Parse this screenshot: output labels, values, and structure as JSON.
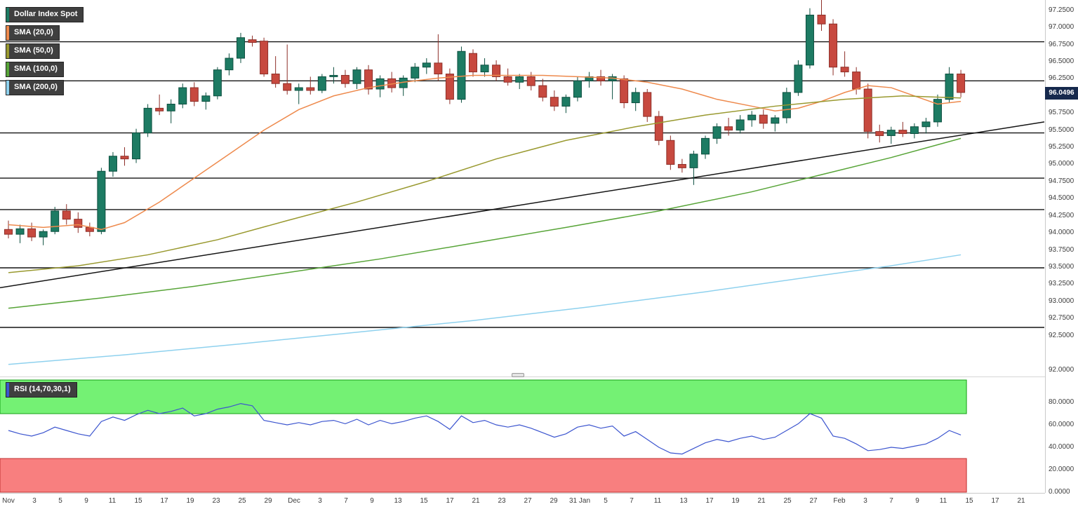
{
  "legend": {
    "main": [
      {
        "label": "Dollar Index Spot",
        "color": "#1d7b63"
      },
      {
        "label": "SMA (20,0)",
        "color": "#ee8a4d"
      },
      {
        "label": "SMA (50,0)",
        "color": "#99992f"
      },
      {
        "label": "SMA (100,0)",
        "color": "#57a437"
      },
      {
        "label": "SMA (200,0)",
        "color": "#8ed1ee"
      }
    ]
  },
  "price_axis": {
    "current": "96.0496"
  },
  "colors": {
    "up": "#1d7b63",
    "up_border": "#0d5040",
    "down": "#c7493f",
    "down_border": "#8e2f28",
    "drawing": "#141414",
    "badge_bg": "#16294d"
  },
  "chart_data": {
    "type": "candlestick",
    "title": "Dollar Index Spot",
    "last_price": 96.0496,
    "y_axis": {
      "ticks": [
        97.25,
        97.0,
        96.75,
        96.5,
        96.25,
        95.75,
        95.5,
        95.25,
        95.0,
        94.75,
        94.5,
        94.25,
        94.0,
        93.75,
        93.5,
        93.25,
        93.0,
        92.75,
        92.5,
        92.0
      ],
      "decimals": 4
    },
    "x_axis": {
      "labels": [
        "Nov",
        "3",
        "5",
        "9",
        "11",
        "15",
        "17",
        "19",
        "23",
        "25",
        "29",
        "Dec",
        "3",
        "7",
        "9",
        "13",
        "15",
        "17",
        "21",
        "23",
        "27",
        "29",
        "31 Jan",
        "5",
        "7",
        "11",
        "13",
        "17",
        "19",
        "21",
        "25",
        "27",
        "Feb",
        "3",
        "7",
        "9",
        "11",
        "15",
        "17",
        "21"
      ]
    },
    "candles": [
      [
        94.05,
        94.18,
        93.92,
        93.98
      ],
      [
        93.98,
        94.12,
        93.85,
        94.06
      ],
      [
        94.06,
        94.15,
        93.88,
        93.94
      ],
      [
        93.94,
        94.05,
        93.82,
        94.02
      ],
      [
        94.02,
        94.38,
        93.98,
        94.32
      ],
      [
        94.32,
        94.42,
        94.12,
        94.2
      ],
      [
        94.2,
        94.3,
        94.0,
        94.08
      ],
      [
        94.08,
        94.15,
        93.95,
        94.02
      ],
      [
        94.02,
        94.95,
        93.98,
        94.9
      ],
      [
        94.9,
        95.18,
        94.82,
        95.12
      ],
      [
        95.12,
        95.25,
        94.98,
        95.08
      ],
      [
        95.08,
        95.52,
        95.02,
        95.46
      ],
      [
        95.46,
        95.88,
        95.4,
        95.82
      ],
      [
        95.82,
        96.02,
        95.72,
        95.78
      ],
      [
        95.78,
        95.95,
        95.6,
        95.88
      ],
      [
        95.88,
        96.18,
        95.82,
        96.12
      ],
      [
        96.12,
        96.2,
        95.85,
        95.92
      ],
      [
        95.92,
        96.05,
        95.8,
        96.0
      ],
      [
        96.0,
        96.42,
        95.95,
        96.38
      ],
      [
        96.38,
        96.62,
        96.3,
        96.55
      ],
      [
        96.55,
        96.92,
        96.48,
        96.85
      ],
      [
        96.82,
        96.88,
        96.72,
        96.78
      ],
      [
        96.8,
        96.85,
        96.28,
        96.32
      ],
      [
        96.32,
        96.58,
        96.12,
        96.18
      ],
      [
        96.18,
        96.75,
        96.02,
        96.08
      ],
      [
        96.08,
        96.18,
        95.88,
        96.12
      ],
      [
        96.12,
        96.28,
        96.02,
        96.08
      ],
      [
        96.08,
        96.32,
        96.04,
        96.28
      ],
      [
        96.28,
        96.42,
        96.18,
        96.3
      ],
      [
        96.3,
        96.38,
        96.12,
        96.18
      ],
      [
        96.18,
        96.42,
        96.1,
        96.38
      ],
      [
        96.38,
        96.45,
        96.02,
        96.1
      ],
      [
        96.1,
        96.3,
        95.98,
        96.25
      ],
      [
        96.25,
        96.35,
        96.05,
        96.12
      ],
      [
        96.12,
        96.3,
        96.0,
        96.26
      ],
      [
        96.26,
        96.48,
        96.2,
        96.42
      ],
      [
        96.42,
        96.55,
        96.32,
        96.48
      ],
      [
        96.48,
        96.9,
        96.22,
        96.32
      ],
      [
        96.32,
        96.4,
        95.88,
        95.95
      ],
      [
        95.95,
        96.72,
        95.9,
        96.65
      ],
      [
        96.62,
        96.68,
        96.28,
        96.35
      ],
      [
        96.35,
        96.55,
        96.28,
        96.45
      ],
      [
        96.45,
        96.52,
        96.22,
        96.28
      ],
      [
        96.28,
        96.4,
        96.15,
        96.2
      ],
      [
        96.2,
        96.32,
        96.1,
        96.28
      ],
      [
        96.28,
        96.35,
        96.08,
        96.15
      ],
      [
        96.15,
        96.25,
        95.92,
        95.98
      ],
      [
        95.98,
        96.08,
        95.78,
        95.85
      ],
      [
        95.85,
        96.02,
        95.75,
        95.98
      ],
      [
        95.98,
        96.28,
        95.92,
        96.22
      ],
      [
        96.22,
        96.35,
        96.12,
        96.28
      ],
      [
        96.28,
        96.38,
        96.15,
        96.22
      ],
      [
        96.22,
        96.32,
        95.95,
        96.28
      ],
      [
        96.25,
        96.3,
        95.82,
        95.9
      ],
      [
        95.9,
        96.12,
        95.78,
        96.05
      ],
      [
        96.05,
        96.1,
        95.62,
        95.7
      ],
      [
        95.7,
        95.78,
        95.28,
        95.35
      ],
      [
        95.35,
        95.42,
        94.92,
        95.0
      ],
      [
        95.0,
        95.08,
        94.88,
        94.95
      ],
      [
        94.95,
        95.2,
        94.7,
        95.15
      ],
      [
        95.15,
        95.42,
        95.08,
        95.38
      ],
      [
        95.38,
        95.6,
        95.3,
        95.55
      ],
      [
        95.55,
        95.68,
        95.42,
        95.5
      ],
      [
        95.5,
        95.72,
        95.45,
        95.65
      ],
      [
        95.65,
        95.78,
        95.55,
        95.72
      ],
      [
        95.72,
        95.8,
        95.52,
        95.6
      ],
      [
        95.6,
        95.72,
        95.48,
        95.68
      ],
      [
        95.68,
        96.12,
        95.6,
        96.05
      ],
      [
        96.05,
        96.52,
        96.0,
        96.45
      ],
      [
        96.45,
        97.28,
        96.4,
        97.18
      ],
      [
        97.18,
        97.45,
        96.95,
        97.05
      ],
      [
        97.05,
        97.12,
        96.3,
        96.42
      ],
      [
        96.42,
        96.65,
        96.28,
        96.35
      ],
      [
        96.35,
        96.42,
        96.02,
        96.1
      ],
      [
        96.1,
        96.18,
        95.38,
        95.48
      ],
      [
        95.48,
        95.58,
        95.32,
        95.42
      ],
      [
        95.42,
        95.55,
        95.3,
        95.5
      ],
      [
        95.5,
        95.62,
        95.4,
        95.45
      ],
      [
        95.45,
        95.6,
        95.38,
        95.55
      ],
      [
        95.55,
        95.68,
        95.45,
        95.62
      ],
      [
        95.62,
        96.02,
        95.55,
        95.95
      ],
      [
        95.95,
        96.42,
        95.9,
        96.32
      ],
      [
        96.32,
        96.38,
        95.98,
        96.05
      ]
    ],
    "overlays": [
      {
        "name": "SMA (20,0)",
        "color": "#ee8a4d",
        "points": [
          [
            0,
            94.12
          ],
          [
            3,
            94.08
          ],
          [
            6,
            94.12
          ],
          [
            8,
            94.05
          ],
          [
            10,
            94.15
          ],
          [
            13,
            94.45
          ],
          [
            16,
            94.8
          ],
          [
            19,
            95.15
          ],
          [
            22,
            95.5
          ],
          [
            25,
            95.8
          ],
          [
            28,
            96.0
          ],
          [
            31,
            96.12
          ],
          [
            34,
            96.2
          ],
          [
            37,
            96.26
          ],
          [
            40,
            96.3
          ],
          [
            43,
            96.3
          ],
          [
            46,
            96.3
          ],
          [
            49,
            96.28
          ],
          [
            52,
            96.26
          ],
          [
            55,
            96.2
          ],
          [
            58,
            96.1
          ],
          [
            61,
            95.95
          ],
          [
            64,
            95.85
          ],
          [
            66,
            95.78
          ],
          [
            68,
            95.82
          ],
          [
            70,
            95.92
          ],
          [
            72,
            96.05
          ],
          [
            74,
            96.15
          ],
          [
            76,
            96.12
          ],
          [
            78,
            96.0
          ],
          [
            80,
            95.88
          ],
          [
            82,
            95.92
          ]
        ]
      },
      {
        "name": "SMA (50,0)",
        "color": "#99992f",
        "points": [
          [
            0,
            93.42
          ],
          [
            6,
            93.52
          ],
          [
            12,
            93.68
          ],
          [
            18,
            93.9
          ],
          [
            24,
            94.18
          ],
          [
            30,
            94.45
          ],
          [
            36,
            94.75
          ],
          [
            42,
            95.08
          ],
          [
            48,
            95.35
          ],
          [
            54,
            95.55
          ],
          [
            60,
            95.72
          ],
          [
            66,
            95.85
          ],
          [
            72,
            95.95
          ],
          [
            77,
            96.0
          ],
          [
            82,
            95.97
          ]
        ]
      },
      {
        "name": "SMA (100,0)",
        "color": "#57a437",
        "points": [
          [
            0,
            92.9
          ],
          [
            8,
            93.05
          ],
          [
            16,
            93.22
          ],
          [
            24,
            93.42
          ],
          [
            32,
            93.62
          ],
          [
            40,
            93.85
          ],
          [
            48,
            94.08
          ],
          [
            56,
            94.32
          ],
          [
            64,
            94.6
          ],
          [
            70,
            94.85
          ],
          [
            76,
            95.1
          ],
          [
            82,
            95.38
          ]
        ]
      },
      {
        "name": "SMA (200,0)",
        "color": "#8ed1ee",
        "points": [
          [
            0,
            92.08
          ],
          [
            10,
            92.22
          ],
          [
            20,
            92.38
          ],
          [
            30,
            92.55
          ],
          [
            40,
            92.72
          ],
          [
            50,
            92.92
          ],
          [
            60,
            93.14
          ],
          [
            70,
            93.38
          ],
          [
            76,
            93.52
          ],
          [
            82,
            93.68
          ]
        ]
      }
    ],
    "drawings": {
      "hlines": [
        96.79,
        96.22,
        95.46,
        94.8,
        94.34,
        93.49,
        92.62
      ],
      "trendline": {
        "from_price": 93.2,
        "to_price": 95.62
      }
    },
    "rsi": {
      "label": "RSI (14,70,30,1)",
      "period": 14,
      "overbought": 70,
      "oversold": 30,
      "range": [
        0,
        100
      ],
      "y_ticks": [
        80,
        60,
        40,
        20,
        0
      ],
      "line_color": "#3c55cf",
      "overbought_fill": "#74f174",
      "overbought_border": "#16a016",
      "oversold_fill": "#f87f7f",
      "oversold_border": "#c03030",
      "values": [
        55,
        52,
        50,
        53,
        58,
        55,
        52,
        50,
        63,
        67,
        64,
        69,
        73,
        70,
        72,
        75,
        68,
        70,
        74,
        76,
        79,
        77,
        64,
        62,
        60,
        62,
        60,
        63,
        64,
        61,
        65,
        60,
        64,
        61,
        63,
        66,
        68,
        63,
        56,
        68,
        62,
        64,
        60,
        58,
        60,
        57,
        53,
        49,
        52,
        58,
        60,
        57,
        59,
        50,
        54,
        47,
        40,
        35,
        34,
        39,
        44,
        47,
        45,
        48,
        50,
        47,
        49,
        55,
        61,
        70,
        66,
        50,
        48,
        43,
        37,
        38,
        40,
        39,
        41,
        43,
        48,
        55,
        51
      ]
    }
  }
}
